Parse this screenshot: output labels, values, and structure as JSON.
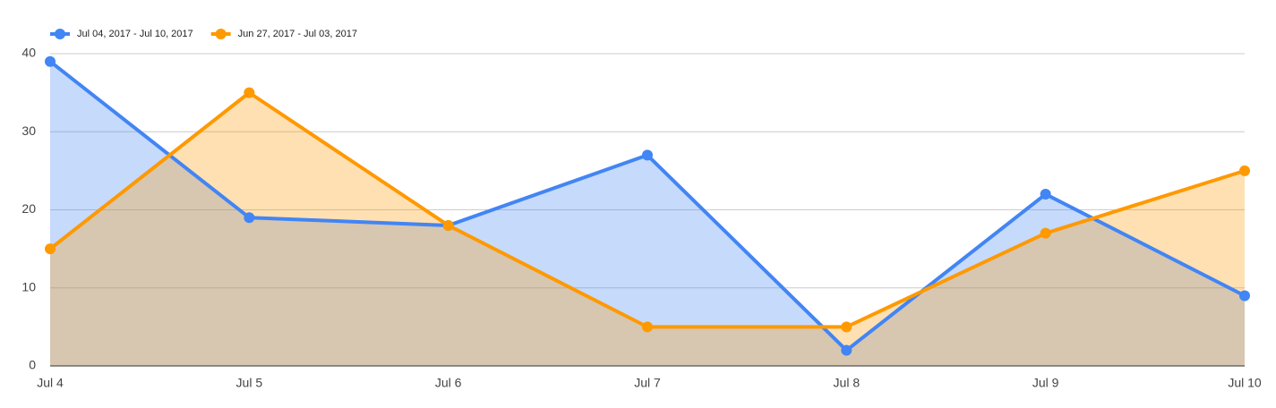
{
  "chart_data": {
    "type": "area",
    "categories": [
      "Jul 4",
      "Jul 5",
      "Jul 6",
      "Jul 7",
      "Jul 8",
      "Jul 9",
      "Jul 10"
    ],
    "series": [
      {
        "name": "Jul 04, 2017 - Jul 10, 2017",
        "color": "#4285f4",
        "values": [
          39,
          19,
          18,
          27,
          2,
          22,
          9
        ]
      },
      {
        "name": "Jun 27, 2017 - Jul 03, 2017",
        "color": "#ff9900",
        "values": [
          15,
          35,
          18,
          5,
          5,
          17,
          25
        ]
      }
    ],
    "ylim": [
      0,
      40
    ],
    "yticks": [
      0,
      10,
      20,
      30,
      40
    ],
    "grid": true,
    "legend": "top-left"
  }
}
